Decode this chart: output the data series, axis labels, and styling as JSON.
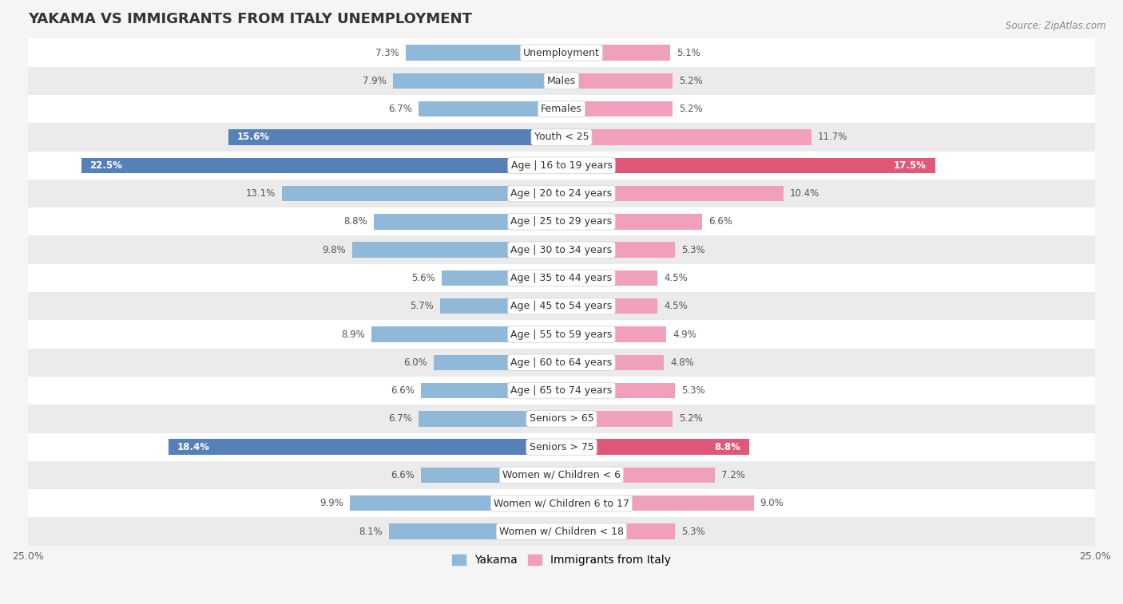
{
  "title": "YAKAMA VS IMMIGRANTS FROM ITALY UNEMPLOYMENT",
  "source": "Source: ZipAtlas.com",
  "categories": [
    "Unemployment",
    "Males",
    "Females",
    "Youth < 25",
    "Age | 16 to 19 years",
    "Age | 20 to 24 years",
    "Age | 25 to 29 years",
    "Age | 30 to 34 years",
    "Age | 35 to 44 years",
    "Age | 45 to 54 years",
    "Age | 55 to 59 years",
    "Age | 60 to 64 years",
    "Age | 65 to 74 years",
    "Seniors > 65",
    "Seniors > 75",
    "Women w/ Children < 6",
    "Women w/ Children 6 to 17",
    "Women w/ Children < 18"
  ],
  "yakama_values": [
    7.3,
    7.9,
    6.7,
    15.6,
    22.5,
    13.1,
    8.8,
    9.8,
    5.6,
    5.7,
    8.9,
    6.0,
    6.6,
    6.7,
    18.4,
    6.6,
    9.9,
    8.1
  ],
  "italy_values": [
    5.1,
    5.2,
    5.2,
    11.7,
    17.5,
    10.4,
    6.6,
    5.3,
    4.5,
    4.5,
    4.9,
    4.8,
    5.3,
    5.2,
    8.8,
    7.2,
    9.0,
    5.3
  ],
  "yakama_color": "#90b8d8",
  "italy_color": "#f0a0b8",
  "yakama_highlight_color": "#5580b8",
  "italy_highlight_color": "#e05878",
  "highlight_rows_yakama": [
    3,
    4,
    14
  ],
  "highlight_rows_italy": [
    4,
    14
  ],
  "bar_height": 0.55,
  "xlim": 25.0,
  "background_color": "#f5f5f5",
  "row_bg_light": "#ffffff",
  "row_bg_dark": "#ebebeb",
  "title_fontsize": 13,
  "label_fontsize": 9,
  "value_fontsize": 8.5,
  "legend_fontsize": 10
}
